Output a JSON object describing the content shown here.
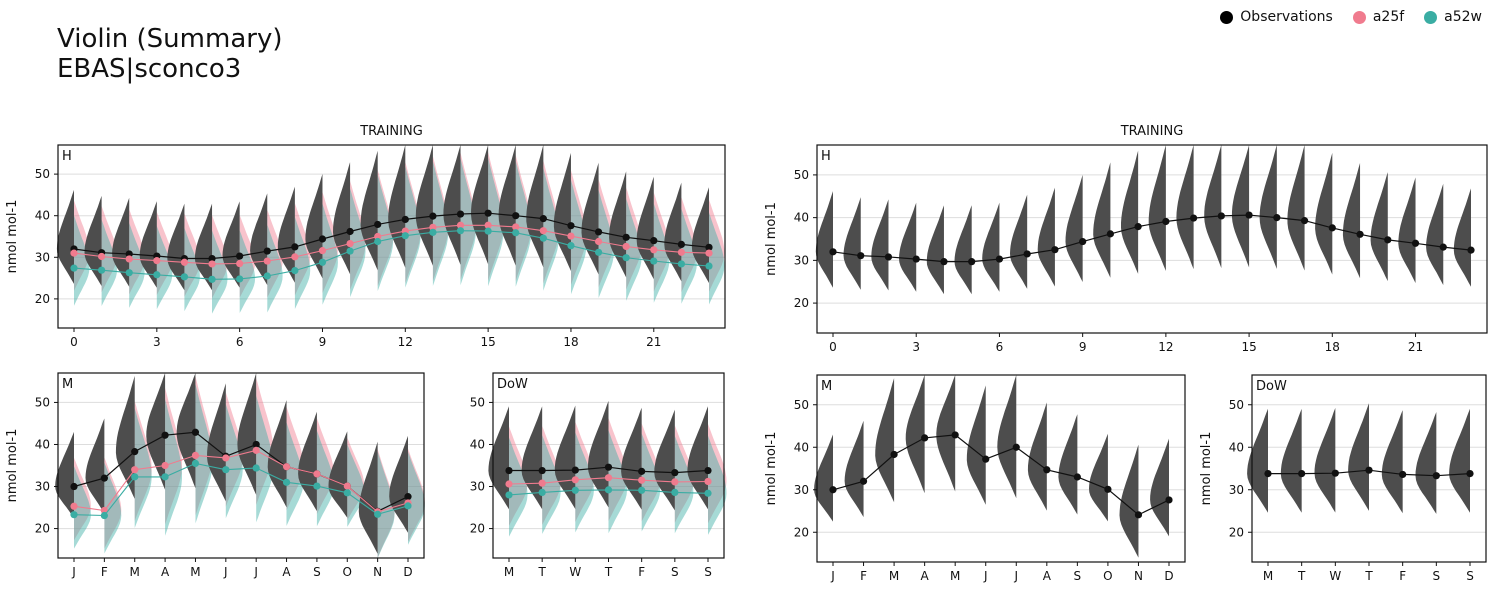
{
  "title": {
    "line1": "Violin (Summary)",
    "line2": "EBAS|sconco3"
  },
  "legend": [
    {
      "label": "Observations",
      "color": "#000000"
    },
    {
      "label": "a25f",
      "color": "#f07b8e"
    },
    {
      "label": "a52w",
      "color": "#3aada3"
    }
  ],
  "colors": {
    "obs": "#4d4d4d",
    "obs_line": "#111111",
    "a25f": "#f07b8e",
    "a52w": "#3aada3",
    "grid": "#dddddd"
  },
  "chart_data": [
    {
      "type": "violin",
      "panel": "H",
      "group_title": "TRAINING",
      "ylabel": "nmol mol-1",
      "ylim": [
        13,
        57
      ],
      "yticks": [
        20,
        30,
        40,
        50
      ],
      "categories": [
        0,
        1,
        2,
        3,
        4,
        5,
        6,
        7,
        8,
        9,
        10,
        11,
        12,
        13,
        14,
        15,
        16,
        17,
        18,
        19,
        20,
        21,
        22,
        23
      ],
      "xticks": [
        "0",
        "3",
        "6",
        "9",
        "12",
        "15",
        "18",
        "21"
      ],
      "series": [
        {
          "name": "Observations",
          "values": [
            32.0,
            31.1,
            30.8,
            30.3,
            29.7,
            29.7,
            30.3,
            31.5,
            32.5,
            34.4,
            36.2,
            37.9,
            39.1,
            39.9,
            40.4,
            40.6,
            40.0,
            39.3,
            37.6,
            36.1,
            34.8,
            34.0,
            33.1,
            32.4
          ]
        },
        {
          "name": "a25f",
          "values": [
            31.0,
            30.2,
            29.6,
            29.2,
            28.8,
            28.4,
            28.5,
            29.1,
            30.1,
            31.6,
            33.3,
            35.0,
            36.3,
            37.2,
            37.7,
            37.7,
            37.3,
            36.4,
            35.1,
            33.8,
            32.6,
            31.8,
            31.2,
            31.0
          ]
        },
        {
          "name": "a52w",
          "values": [
            27.4,
            26.9,
            26.3,
            25.8,
            25.3,
            24.7,
            24.8,
            25.5,
            26.8,
            28.8,
            31.5,
            33.8,
            35.2,
            36.0,
            36.4,
            36.3,
            35.9,
            34.6,
            32.8,
            31.2,
            29.9,
            29.1,
            28.4,
            27.9
          ]
        }
      ]
    },
    {
      "type": "violin",
      "panel": "M",
      "ylabel": "nmol mol-1",
      "ylim": [
        13,
        57
      ],
      "yticks": [
        20,
        30,
        40,
        50
      ],
      "categories": [
        "J",
        "F",
        "M",
        "A",
        "M",
        "J",
        "J",
        "A",
        "S",
        "O",
        "N",
        "D"
      ],
      "series": [
        {
          "name": "Observations",
          "values": [
            30.0,
            32.0,
            38.3,
            42.2,
            42.9,
            37.2,
            40.0,
            34.7,
            33.0,
            30.1,
            24.1,
            27.6
          ]
        },
        {
          "name": "a25f",
          "values": [
            25.3,
            24.3,
            34.0,
            35.0,
            37.4,
            36.8,
            38.6,
            34.7,
            33.0,
            30.1,
            24.0,
            26.1
          ]
        },
        {
          "name": "a52w",
          "values": [
            23.3,
            23.1,
            32.3,
            32.3,
            35.5,
            34.0,
            34.4,
            31.0,
            30.1,
            28.5,
            23.4,
            25.4
          ]
        }
      ]
    },
    {
      "type": "violin",
      "panel": "DoW",
      "ylabel": "",
      "ylim": [
        13,
        57
      ],
      "yticks": [
        20,
        30,
        40,
        50
      ],
      "categories": [
        "M",
        "T",
        "W",
        "T",
        "F",
        "S",
        "S"
      ],
      "series": [
        {
          "name": "Observations",
          "values": [
            33.8,
            33.8,
            33.9,
            34.6,
            33.6,
            33.3,
            33.8
          ]
        },
        {
          "name": "a25f",
          "values": [
            30.6,
            30.8,
            31.6,
            32.1,
            31.5,
            31.1,
            31.2
          ]
        },
        {
          "name": "a52w",
          "values": [
            28.0,
            28.6,
            29.1,
            29.2,
            29.1,
            28.6,
            28.4
          ]
        }
      ]
    },
    {
      "type": "violin",
      "panel": "H",
      "group_title": "TRAINING",
      "ylabel": "nmol mol-1",
      "ylim": [
        13,
        57
      ],
      "yticks": [
        20,
        30,
        40,
        50
      ],
      "categories": [
        0,
        1,
        2,
        3,
        4,
        5,
        6,
        7,
        8,
        9,
        10,
        11,
        12,
        13,
        14,
        15,
        16,
        17,
        18,
        19,
        20,
        21,
        22,
        23
      ],
      "xticks": [
        "0",
        "3",
        "6",
        "9",
        "12",
        "15",
        "18",
        "21"
      ],
      "series": [
        {
          "name": "Observations",
          "values": [
            32.0,
            31.1,
            30.8,
            30.3,
            29.7,
            29.7,
            30.3,
            31.5,
            32.5,
            34.4,
            36.2,
            37.9,
            39.1,
            39.9,
            40.4,
            40.6,
            40.0,
            39.3,
            37.6,
            36.1,
            34.8,
            34.0,
            33.1,
            32.4
          ]
        }
      ]
    },
    {
      "type": "violin",
      "panel": "M",
      "ylabel": "nmol mol-1",
      "ylim": [
        13,
        57
      ],
      "yticks": [
        20,
        30,
        40,
        50
      ],
      "categories": [
        "J",
        "F",
        "M",
        "A",
        "M",
        "J",
        "J",
        "A",
        "S",
        "O",
        "N",
        "D"
      ],
      "series": [
        {
          "name": "Observations",
          "values": [
            30.0,
            32.0,
            38.3,
            42.2,
            42.9,
            37.2,
            40.0,
            34.7,
            33.0,
            30.1,
            24.1,
            27.6
          ]
        }
      ]
    },
    {
      "type": "violin",
      "panel": "DoW",
      "ylabel": "nmol mol-1",
      "ylim": [
        13,
        57
      ],
      "yticks": [
        20,
        30,
        40,
        50
      ],
      "categories": [
        "M",
        "T",
        "W",
        "T",
        "F",
        "S",
        "S"
      ],
      "series": [
        {
          "name": "Observations",
          "values": [
            33.8,
            33.8,
            33.9,
            34.6,
            33.6,
            33.3,
            33.8
          ]
        }
      ]
    }
  ]
}
